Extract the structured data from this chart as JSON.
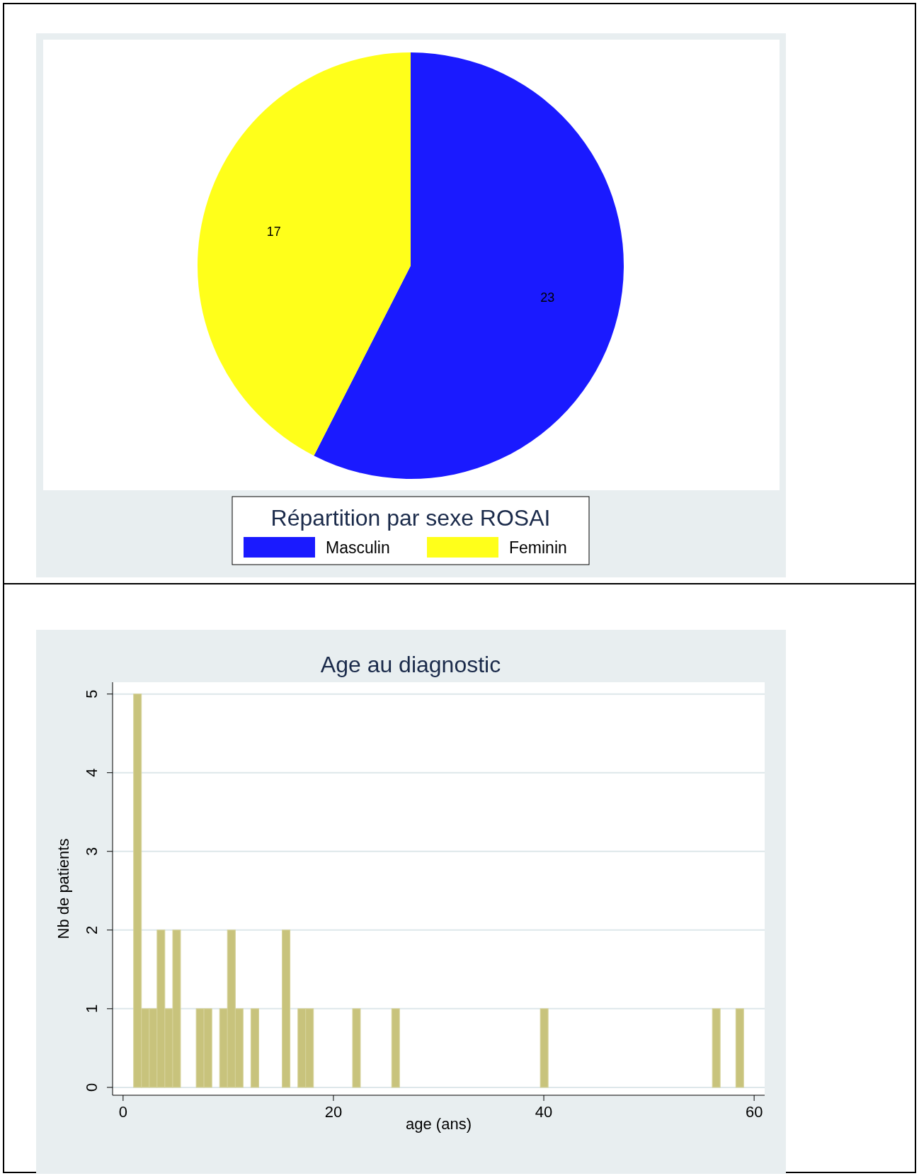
{
  "chart_data": [
    {
      "type": "pie",
      "legend_title": "Répartition par sexe ROSAI",
      "categories": [
        "Masculin",
        "Feminin"
      ],
      "values": [
        23,
        17
      ],
      "colors": [
        "#1a1aff",
        "#ffff1a"
      ],
      "data_labels": true,
      "legend": "bottom"
    },
    {
      "type": "histogram",
      "title": "Age au diagnostic",
      "xlabel": "age (ans)",
      "ylabel": "Nb de patients",
      "color": "#c8c37c",
      "bins": [
        1,
        1.74,
        2.49,
        3.23,
        3.97,
        4.72,
        5.46,
        6.21,
        6.95,
        7.69,
        8.44,
        9.18,
        9.92,
        10.67,
        11.41,
        12.15,
        12.9,
        13.64,
        14.38,
        15.13,
        15.87,
        16.62,
        17.36,
        18.1,
        18.85,
        19.59,
        20.33,
        21.08,
        21.82,
        22.56,
        23.31,
        24.05,
        24.79,
        25.54,
        26.28,
        27.03,
        27.77,
        28.51,
        29.26,
        30,
        30.74,
        31.49,
        32.23,
        32.97,
        33.72,
        34.46,
        35.21,
        35.95,
        36.69,
        37.44,
        38.18,
        38.92,
        39.67,
        40.41,
        41.15,
        41.9,
        42.64,
        43.38,
        44.13,
        44.87,
        45.62,
        46.36,
        47.1,
        47.85,
        48.59,
        49.33,
        50.08,
        50.82,
        51.56,
        52.31,
        53.05,
        53.79,
        54.54,
        55.28,
        56.03,
        56.77,
        57.51,
        58.26,
        59
      ],
      "values": [
        5,
        1,
        1,
        2,
        1,
        2,
        0,
        0,
        1,
        1,
        0,
        1,
        2,
        1,
        0,
        1,
        0,
        0,
        0,
        2,
        0,
        1,
        1,
        0,
        0,
        0,
        0,
        0,
        1,
        0,
        0,
        0,
        0,
        1,
        0,
        0,
        0,
        0,
        0,
        0,
        0,
        0,
        0,
        0,
        0,
        0,
        0,
        0,
        0,
        0,
        0,
        0,
        1,
        0,
        0,
        0,
        0,
        0,
        0,
        0,
        0,
        0,
        0,
        0,
        0,
        0,
        0,
        0,
        0,
        0,
        0,
        0,
        0,
        0,
        1,
        0,
        0,
        1
      ],
      "xlim": [
        -1,
        61
      ],
      "ylim": [
        -0.1,
        5.15
      ],
      "xticks": [
        0,
        20,
        40,
        60
      ],
      "yticks": [
        0,
        1,
        2,
        3,
        4,
        5
      ],
      "grid": "y"
    }
  ]
}
